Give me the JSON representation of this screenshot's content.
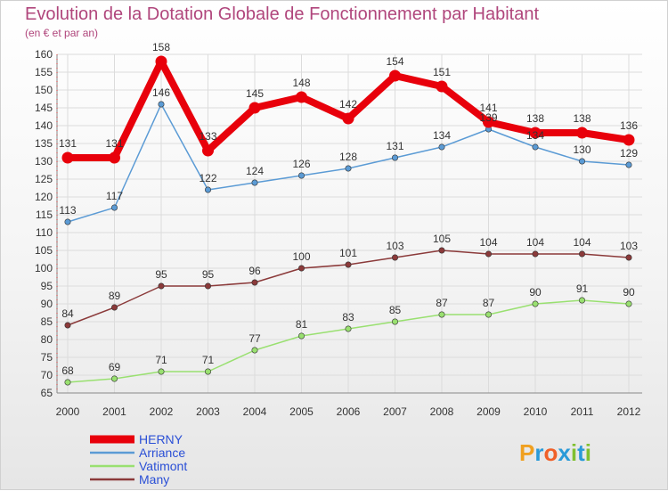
{
  "title": "Evolution de la Dotation Globale de Fonctionnement par Habitant",
  "subtitle": "(en € et par an)",
  "logo": {
    "letters": [
      "P",
      "r",
      "o",
      "x",
      "i",
      "t",
      "i"
    ],
    "colors": [
      "#f0a020",
      "#2a9ad8",
      "#f06028",
      "#2a9ad8",
      "#80c030",
      "#2a9ad8",
      "#80c030"
    ]
  },
  "chart_data": {
    "type": "line",
    "x": [
      "2000",
      "2001",
      "2002",
      "2003",
      "2004",
      "2005",
      "2006",
      "2007",
      "2008",
      "2009",
      "2010",
      "2011",
      "2012"
    ],
    "ylim": [
      65,
      160
    ],
    "yticks": [
      65,
      70,
      75,
      80,
      85,
      90,
      95,
      100,
      105,
      110,
      115,
      120,
      125,
      130,
      135,
      140,
      145,
      150,
      155,
      160
    ],
    "grid": true,
    "legend_position": "bottom-left",
    "series": [
      {
        "name": "HERNY",
        "color": "#e8000b",
        "label_color": "#2a4fd6",
        "values": [
          131,
          131,
          158,
          133,
          145,
          148,
          142,
          154,
          151,
          141,
          138,
          138,
          136
        ],
        "labels": [
          "131",
          "131",
          "158",
          "133",
          "145",
          "148",
          "142",
          "154",
          "151",
          "141",
          "138",
          "138",
          "136"
        ]
      },
      {
        "name": "Arriance",
        "color": "#5b9bd5",
        "label_color": "#2a4fd6",
        "values": [
          113,
          117,
          146,
          122,
          124,
          126,
          128,
          131,
          134,
          139,
          134,
          130,
          129
        ],
        "labels": [
          "113",
          "117",
          "146",
          "122",
          "124",
          "126",
          "128",
          "131",
          "134",
          "139",
          "134",
          "130",
          "129"
        ]
      },
      {
        "name": "Vatimont",
        "color": "#99e070",
        "label_color": "#2a4fd6",
        "values": [
          68,
          69,
          71,
          71,
          77,
          81,
          83,
          85,
          87,
          87,
          90,
          91,
          90
        ],
        "labels": [
          "68",
          "69",
          "71",
          "71",
          "77",
          "81",
          "83",
          "85",
          "87",
          "87",
          "90",
          "91",
          "90"
        ]
      },
      {
        "name": "Many",
        "color": "#8b3a3a",
        "label_color": "#2a4fd6",
        "values": [
          84,
          89,
          95,
          95,
          96,
          100,
          101,
          103,
          105,
          104,
          104,
          104,
          103
        ],
        "labels": [
          "84",
          "89",
          "95",
          "95",
          "96",
          "100",
          "101",
          "103",
          "105",
          "104",
          "104",
          "104",
          "103"
        ]
      }
    ]
  }
}
